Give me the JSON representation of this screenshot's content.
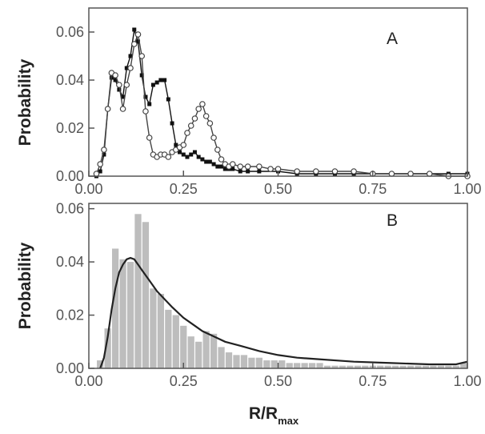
{
  "chart_data": [
    {
      "type": "line",
      "panel_label": "A",
      "ylabel": "Probability",
      "xlim": [
        0,
        1
      ],
      "ylim": [
        0,
        0.07
      ],
      "x_ticks": [
        "0.00",
        "0.25",
        "0.50",
        "0.75",
        "1.00"
      ],
      "y_ticks": [
        "0.00",
        "0.02",
        "0.04",
        "0.06"
      ],
      "grid": false,
      "series": [
        {
          "marker": "filled-square",
          "color": "#111111",
          "x": [
            0.02,
            0.03,
            0.04,
            0.05,
            0.06,
            0.07,
            0.08,
            0.09,
            0.1,
            0.11,
            0.12,
            0.13,
            0.14,
            0.15,
            0.16,
            0.17,
            0.18,
            0.19,
            0.2,
            0.21,
            0.22,
            0.23,
            0.24,
            0.25,
            0.26,
            0.27,
            0.28,
            0.29,
            0.3,
            0.31,
            0.32,
            0.33,
            0.34,
            0.35,
            0.36,
            0.37,
            0.38,
            0.4,
            0.42,
            0.45,
            0.5,
            0.55,
            0.6,
            0.65,
            0.7,
            0.75,
            0.8,
            0.85,
            0.9,
            0.95,
            1.0
          ],
          "y": [
            0.0,
            0.002,
            0.009,
            0.028,
            0.041,
            0.04,
            0.036,
            0.033,
            0.045,
            0.05,
            0.061,
            0.056,
            0.042,
            0.033,
            0.03,
            0.038,
            0.039,
            0.04,
            0.04,
            0.032,
            0.022,
            0.013,
            0.01,
            0.009,
            0.008,
            0.009,
            0.01,
            0.008,
            0.007,
            0.006,
            0.006,
            0.005,
            0.004,
            0.004,
            0.003,
            0.003,
            0.003,
            0.002,
            0.002,
            0.002,
            0.002,
            0.001,
            0.001,
            0.001,
            0.001,
            0.001,
            0.001,
            0.001,
            0.001,
            0.001,
            0.001
          ]
        },
        {
          "marker": "open-circle",
          "color": "#444444",
          "x": [
            0.02,
            0.03,
            0.04,
            0.05,
            0.06,
            0.07,
            0.08,
            0.09,
            0.1,
            0.11,
            0.12,
            0.13,
            0.14,
            0.15,
            0.16,
            0.17,
            0.18,
            0.19,
            0.2,
            0.21,
            0.22,
            0.23,
            0.24,
            0.25,
            0.26,
            0.27,
            0.28,
            0.29,
            0.3,
            0.31,
            0.32,
            0.33,
            0.34,
            0.35,
            0.36,
            0.37,
            0.38,
            0.4,
            0.42,
            0.45,
            0.48,
            0.5,
            0.55,
            0.6,
            0.65,
            0.7,
            0.75,
            0.8,
            0.85,
            0.9,
            0.95,
            1.0
          ],
          "y": [
            0.001,
            0.005,
            0.011,
            0.028,
            0.043,
            0.042,
            0.038,
            0.028,
            0.038,
            0.045,
            0.055,
            0.059,
            0.05,
            0.027,
            0.016,
            0.009,
            0.008,
            0.009,
            0.009,
            0.008,
            0.01,
            0.011,
            0.012,
            0.013,
            0.018,
            0.021,
            0.024,
            0.028,
            0.03,
            0.025,
            0.022,
            0.016,
            0.011,
            0.007,
            0.005,
            0.004,
            0.005,
            0.004,
            0.004,
            0.004,
            0.003,
            0.003,
            0.002,
            0.002,
            0.002,
            0.002,
            0.001,
            0.001,
            0.001,
            0.001,
            0.0,
            0.0
          ]
        }
      ]
    },
    {
      "type": "bar",
      "panel_label": "B",
      "xlabel": "R/R",
      "xlabel_sub": "max",
      "ylabel": "Probability",
      "xlim": [
        0,
        1
      ],
      "ylim": [
        0,
        0.062
      ],
      "x_ticks": [
        "0.00",
        "0.25",
        "0.50",
        "0.75",
        "1.00"
      ],
      "y_ticks": [
        "0.00",
        "0.02",
        "0.04",
        "0.06"
      ],
      "grid": false,
      "bar_color": "#bdbdbd",
      "bin_width": 0.02,
      "x": [
        0.03,
        0.05,
        0.07,
        0.09,
        0.11,
        0.13,
        0.15,
        0.17,
        0.19,
        0.21,
        0.23,
        0.25,
        0.27,
        0.29,
        0.31,
        0.33,
        0.35,
        0.37,
        0.39,
        0.41,
        0.43,
        0.45,
        0.47,
        0.49,
        0.51,
        0.53,
        0.55,
        0.57,
        0.59,
        0.61,
        0.63,
        0.65,
        0.67,
        0.69,
        0.71,
        0.73,
        0.75,
        0.77,
        0.79,
        0.81,
        0.83,
        0.85,
        0.87,
        0.89,
        0.91,
        0.93,
        0.95,
        0.97,
        0.99
      ],
      "values": [
        0.003,
        0.015,
        0.045,
        0.041,
        0.04,
        0.058,
        0.055,
        0.03,
        0.028,
        0.022,
        0.02,
        0.016,
        0.012,
        0.01,
        0.014,
        0.013,
        0.008,
        0.006,
        0.005,
        0.005,
        0.004,
        0.004,
        0.003,
        0.003,
        0.003,
        0.002,
        0.002,
        0.002,
        0.002,
        0.002,
        0.001,
        0.001,
        0.001,
        0.001,
        0.001,
        0.001,
        0.001,
        0.001,
        0.001,
        0.001,
        0.001,
        0.001,
        0.001,
        0.001,
        0.001,
        0.001,
        0.001,
        0.001,
        0.002
      ],
      "fit_curve": {
        "color": "#222222",
        "x": [
          0.03,
          0.04,
          0.05,
          0.06,
          0.07,
          0.08,
          0.09,
          0.1,
          0.11,
          0.12,
          0.13,
          0.14,
          0.16,
          0.18,
          0.2,
          0.22,
          0.25,
          0.28,
          0.3,
          0.33,
          0.36,
          0.4,
          0.45,
          0.5,
          0.55,
          0.6,
          0.7,
          0.8,
          0.9,
          0.97,
          1.0
        ],
        "y": [
          0.0,
          0.004,
          0.012,
          0.022,
          0.03,
          0.036,
          0.039,
          0.041,
          0.0415,
          0.041,
          0.039,
          0.037,
          0.033,
          0.029,
          0.026,
          0.023,
          0.019,
          0.016,
          0.014,
          0.012,
          0.01,
          0.0085,
          0.0065,
          0.005,
          0.004,
          0.0035,
          0.0025,
          0.002,
          0.0015,
          0.0015,
          0.0025
        ]
      }
    }
  ]
}
